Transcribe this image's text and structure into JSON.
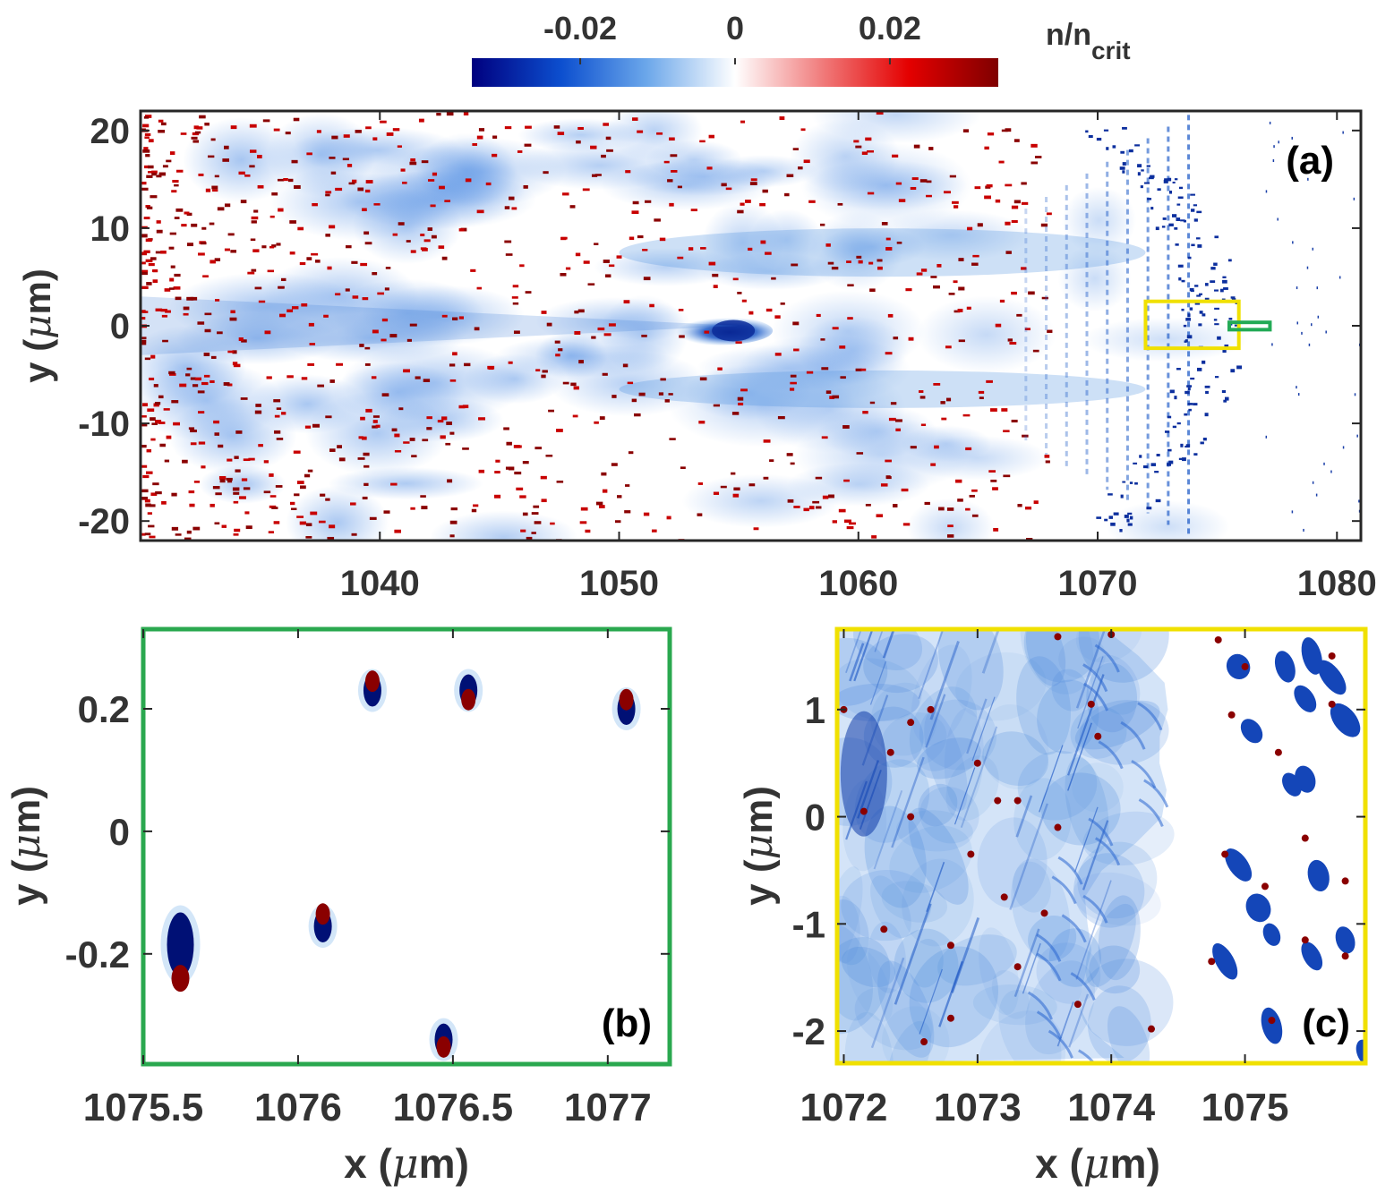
{
  "colorbar": {
    "ticks": [
      -0.02,
      0,
      0.02
    ],
    "tick_labels": [
      "-0.02",
      "0",
      "0.02"
    ],
    "label_main": "n/n",
    "label_sub": "crit",
    "range": [
      -0.034,
      0.034
    ],
    "colors": [
      "#00007f",
      "#0c4fcf",
      "#6aa6ea",
      "#ffffff",
      "#f07878",
      "#e40000",
      "#7f0000"
    ]
  },
  "chart_data": [
    {
      "panel": "(a)",
      "type": "heatmap",
      "title": "",
      "xlabel": "",
      "ylabel_prefix": "y (",
      "ylabel_symbol": "μ",
      "ylabel_suffix": "m)",
      "xlim": [
        1030,
        1081
      ],
      "ylim": [
        -22,
        22
      ],
      "xticks": [
        1040,
        1050,
        1060,
        1070,
        1080
      ],
      "xtick_labels": [
        "1040",
        "1050",
        "1060",
        "1070",
        "1080"
      ],
      "yticks": [
        -20,
        -10,
        0,
        10,
        20
      ],
      "ytick_labels": [
        "-20",
        "-10",
        "0",
        "10",
        "20"
      ],
      "description_of_field": "electron density perturbation: negative (blue) filamentary channels and transverse striations near x=1065-1075; positive (red) dots concentrated at x<1050",
      "features": [
        {
          "name": "dense blue blob",
          "x": 1055.0,
          "y": -0.5,
          "value": -0.03
        },
        {
          "name": "upper filament",
          "x_range": [
            1050,
            1072
          ],
          "y_range": [
            3,
            12
          ],
          "value": -0.012
        },
        {
          "name": "lower filament",
          "x_range": [
            1050,
            1072
          ],
          "y_range": [
            -10,
            -3
          ],
          "value": -0.012
        },
        {
          "name": "striation front",
          "x": 1075.0,
          "y_range": [
            -20,
            20
          ],
          "value": -0.025
        }
      ],
      "insets": [
        {
          "name": "yellow box",
          "color": "#f0e000",
          "x_range": [
            1072,
            1075.9
          ],
          "y_range": [
            -2.3,
            2.5
          ]
        },
        {
          "name": "green box",
          "color": "#22aa55",
          "x_range": [
            1075.5,
            1077.2
          ],
          "y_range": [
            -0.4,
            0.35
          ]
        }
      ]
    },
    {
      "panel": "(b)",
      "type": "scatter",
      "frame_color": "#22aa55",
      "xlabel_prefix": "x (",
      "xlabel_symbol": "μ",
      "xlabel_suffix": "m)",
      "ylabel_prefix": "y (",
      "ylabel_symbol": "μ",
      "ylabel_suffix": "m)",
      "xlim": [
        1075.5,
        1077.2
      ],
      "ylim": [
        -0.38,
        0.33
      ],
      "xticks": [
        1075.5,
        1076,
        1076.5,
        1077
      ],
      "xtick_labels": [
        "1075.5",
        "1076",
        "1076.5",
        "1077"
      ],
      "yticks": [
        -0.2,
        0,
        0.2
      ],
      "ytick_labels": [
        "-0.2",
        "0",
        "0.2"
      ],
      "points": [
        {
          "x": 1075.62,
          "y": -0.185,
          "blue_dy": 0.0,
          "red_dy": -0.055,
          "size": "large"
        },
        {
          "x": 1076.08,
          "y": -0.155,
          "blue_dy": 0.0,
          "red_dy": 0.02,
          "size": "small"
        },
        {
          "x": 1076.24,
          "y": 0.23,
          "blue_dy": 0.0,
          "red_dy": 0.015,
          "size": "small"
        },
        {
          "x": 1076.55,
          "y": 0.225,
          "blue_dy": 0.005,
          "red_dy": -0.01,
          "size": "small"
        },
        {
          "x": 1076.47,
          "y": -0.34,
          "blue_dy": 0.0,
          "red_dy": -0.012,
          "size": "small"
        },
        {
          "x": 1077.06,
          "y": 0.205,
          "blue_dy": -0.005,
          "red_dy": 0.01,
          "size": "small"
        }
      ]
    },
    {
      "panel": "(c)",
      "type": "heatmap",
      "frame_color": "#f0e000",
      "xlabel_prefix": "x (",
      "xlabel_symbol": "μ",
      "xlabel_suffix": "m)",
      "ylabel_prefix": "y (",
      "ylabel_symbol": "μ",
      "ylabel_suffix": "m)",
      "xlim": [
        1071.95,
        1075.9
      ],
      "ylim": [
        -2.3,
        1.75
      ],
      "xticks": [
        1072,
        1073,
        1074,
        1075
      ],
      "xtick_labels": [
        "1072",
        "1073",
        "1074",
        "1075"
      ],
      "yticks": [
        -2,
        -1,
        0,
        1
      ],
      "ytick_labels": [
        "-2",
        "-1",
        "0",
        "1"
      ],
      "red_points": [
        {
          "x": 1072.0,
          "y": 1.0
        },
        {
          "x": 1072.35,
          "y": 0.6
        },
        {
          "x": 1072.5,
          "y": 0.88
        },
        {
          "x": 1072.65,
          "y": 1.0
        },
        {
          "x": 1072.15,
          "y": 0.05
        },
        {
          "x": 1072.5,
          "y": 0.0
        },
        {
          "x": 1073.0,
          "y": 0.5
        },
        {
          "x": 1073.15,
          "y": 0.15
        },
        {
          "x": 1073.3,
          "y": 0.15
        },
        {
          "x": 1072.95,
          "y": -0.35
        },
        {
          "x": 1072.3,
          "y": -1.05
        },
        {
          "x": 1072.8,
          "y": -1.2
        },
        {
          "x": 1073.2,
          "y": -0.75
        },
        {
          "x": 1073.5,
          "y": -0.9
        },
        {
          "x": 1073.3,
          "y": -1.4
        },
        {
          "x": 1072.8,
          "y": -1.88
        },
        {
          "x": 1072.6,
          "y": -2.1
        },
        {
          "x": 1073.6,
          "y": -0.1
        },
        {
          "x": 1073.9,
          "y": 0.75
        },
        {
          "x": 1073.85,
          "y": 1.05
        },
        {
          "x": 1073.6,
          "y": 1.68
        },
        {
          "x": 1074.0,
          "y": 1.7
        },
        {
          "x": 1073.75,
          "y": -1.75
        },
        {
          "x": 1074.3,
          "y": -1.98
        },
        {
          "x": 1074.75,
          "y": -1.35
        },
        {
          "x": 1074.85,
          "y": -0.35
        },
        {
          "x": 1074.9,
          "y": 0.95
        },
        {
          "x": 1075.0,
          "y": 1.4
        },
        {
          "x": 1075.25,
          "y": 0.6
        },
        {
          "x": 1075.15,
          "y": -0.65
        },
        {
          "x": 1075.45,
          "y": -0.2
        },
        {
          "x": 1075.45,
          "y": -1.15
        },
        {
          "x": 1075.2,
          "y": -1.9
        },
        {
          "x": 1075.75,
          "y": -0.6
        },
        {
          "x": 1075.75,
          "y": -1.3
        },
        {
          "x": 1075.65,
          "y": 1.5
        },
        {
          "x": 1075.65,
          "y": 1.05
        },
        {
          "x": 1074.8,
          "y": 1.65
        }
      ],
      "blue_clusters": [
        {
          "x": 1074.95,
          "y": 1.4
        },
        {
          "x": 1075.3,
          "y": 1.4
        },
        {
          "x": 1075.5,
          "y": 1.5
        },
        {
          "x": 1075.65,
          "y": 1.3
        },
        {
          "x": 1075.45,
          "y": 1.1
        },
        {
          "x": 1075.75,
          "y": 0.9
        },
        {
          "x": 1075.05,
          "y": 0.8
        },
        {
          "x": 1075.35,
          "y": 0.3
        },
        {
          "x": 1075.45,
          "y": 0.35
        },
        {
          "x": 1074.95,
          "y": -0.45
        },
        {
          "x": 1075.1,
          "y": -0.85
        },
        {
          "x": 1075.2,
          "y": -1.1
        },
        {
          "x": 1074.85,
          "y": -1.35
        },
        {
          "x": 1075.5,
          "y": -1.3
        },
        {
          "x": 1075.75,
          "y": -1.15
        },
        {
          "x": 1075.55,
          "y": -0.55
        },
        {
          "x": 1075.2,
          "y": -1.95
        },
        {
          "x": 1075.9,
          "y": -2.2
        }
      ]
    }
  ]
}
